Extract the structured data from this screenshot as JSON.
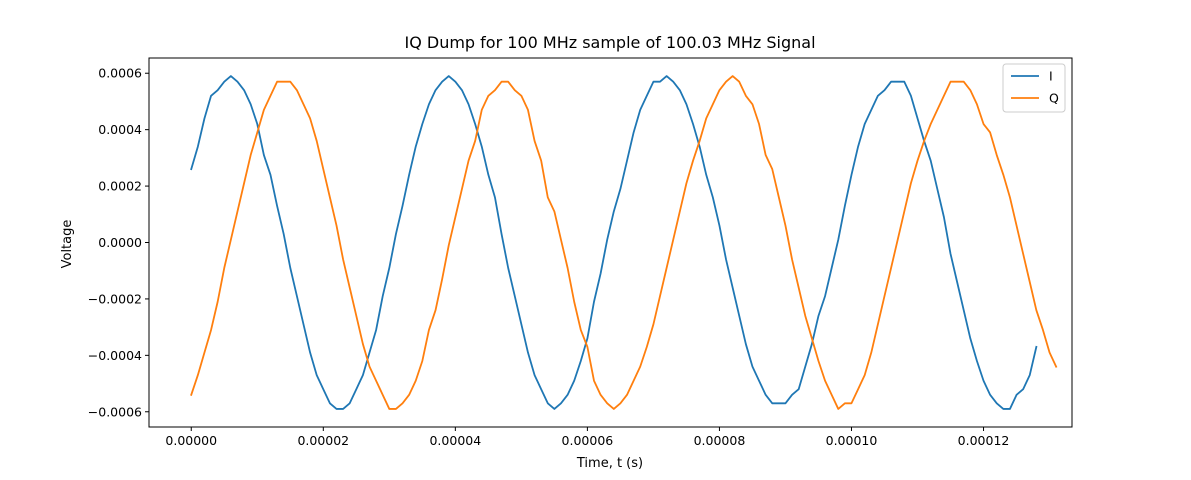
{
  "chart_data": {
    "type": "line",
    "title": "IQ Dump for 100 MHz sample of 100.03 MHz Signal",
    "xlabel": "Time, t (s)",
    "ylabel": "Voltage",
    "xlim": [
      -6.4e-06,
      0.0001334
    ],
    "ylim": [
      -0.000654,
      0.000654
    ],
    "x_ticks": [
      0,
      2e-05,
      4e-05,
      6e-05,
      8e-05,
      0.0001,
      0.00012
    ],
    "x_tick_labels": [
      "0.00000",
      "0.00002",
      "0.00004",
      "0.00006",
      "0.00008",
      "0.00010",
      "0.00012"
    ],
    "y_ticks": [
      -0.0006,
      -0.0004,
      -0.0002,
      0,
      0.0002,
      0.0004,
      0.0006
    ],
    "y_tick_labels": [
      "−0.0006",
      "−0.0004",
      "−0.0002",
      "0.0000",
      "0.0002",
      "0.0004",
      "0.0006"
    ],
    "grid": false,
    "legend_position": "top-right",
    "x_step": 1e-06,
    "series": [
      {
        "name": "I",
        "color": "#1f77b4",
        "values": [
          0.00026,
          0.00034,
          0.00044,
          0.00052,
          0.00054,
          0.00057,
          0.00059,
          0.00057,
          0.00054,
          0.00049,
          0.00042,
          0.00031,
          0.00024,
          0.00013,
          3e-05,
          -9e-05,
          -0.00019,
          -0.00029,
          -0.00039,
          -0.00047,
          -0.00052,
          -0.00057,
          -0.00059,
          -0.00059,
          -0.00057,
          -0.00052,
          -0.00047,
          -0.00039,
          -0.00031,
          -0.00019,
          -9e-05,
          3e-05,
          0.00013,
          0.00024,
          0.00034,
          0.00042,
          0.00049,
          0.00054,
          0.00057,
          0.00059,
          0.00057,
          0.00054,
          0.00049,
          0.00042,
          0.00034,
          0.00024,
          0.00016,
          3e-05,
          -9e-05,
          -0.00019,
          -0.00029,
          -0.00039,
          -0.00047,
          -0.00052,
          -0.00057,
          -0.00059,
          -0.00057,
          -0.00054,
          -0.00049,
          -0.00042,
          -0.00034,
          -0.00021,
          -0.00011,
          1e-05,
          0.00011,
          0.00019,
          0.00029,
          0.00039,
          0.00047,
          0.00052,
          0.00057,
          0.00057,
          0.00059,
          0.00057,
          0.00054,
          0.00049,
          0.00042,
          0.00034,
          0.00024,
          0.00016,
          6e-05,
          -6e-05,
          -0.00016,
          -0.00026,
          -0.00036,
          -0.00044,
          -0.00049,
          -0.00054,
          -0.00057,
          -0.00057,
          -0.00057,
          -0.00054,
          -0.00052,
          -0.00044,
          -0.00036,
          -0.00026,
          -0.00019,
          -9e-05,
          1e-05,
          0.00013,
          0.00024,
          0.00034,
          0.00042,
          0.00047,
          0.00052,
          0.00054,
          0.00057,
          0.00057,
          0.00057,
          0.00052,
          0.00044,
          0.00036,
          0.00029,
          0.00019,
          9e-05,
          -4e-05,
          -0.00014,
          -0.00024,
          -0.00034,
          -0.00042,
          -0.00049,
          -0.00054,
          -0.00057,
          -0.00059,
          -0.00059,
          -0.00054,
          -0.00052,
          -0.00047,
          -0.00037
        ]
      },
      {
        "name": "Q",
        "color": "#ff7f0e",
        "values": [
          -0.00054,
          -0.00047,
          -0.00039,
          -0.00031,
          -0.00021,
          -9e-05,
          1e-05,
          0.00011,
          0.00021,
          0.00031,
          0.00039,
          0.00047,
          0.00052,
          0.00057,
          0.00057,
          0.00057,
          0.00054,
          0.00049,
          0.00044,
          0.00036,
          0.00026,
          0.00016,
          6e-05,
          -6e-05,
          -0.00016,
          -0.00026,
          -0.00036,
          -0.00044,
          -0.00049,
          -0.00054,
          -0.00059,
          -0.00059,
          -0.00057,
          -0.00054,
          -0.00049,
          -0.00042,
          -0.00031,
          -0.00024,
          -0.00013,
          -1e-05,
          9e-05,
          0.00019,
          0.00029,
          0.00036,
          0.00047,
          0.00052,
          0.00054,
          0.00057,
          0.00057,
          0.00054,
          0.00052,
          0.00047,
          0.00036,
          0.00029,
          0.00016,
          0.00011,
          1e-05,
          -9e-05,
          -0.00021,
          -0.00031,
          -0.00037,
          -0.00049,
          -0.00054,
          -0.00057,
          -0.00059,
          -0.00057,
          -0.00054,
          -0.00049,
          -0.00044,
          -0.00037,
          -0.00029,
          -0.00019,
          -9e-05,
          1e-05,
          0.00011,
          0.00021,
          0.00029,
          0.00036,
          0.00044,
          0.00049,
          0.00054,
          0.00057,
          0.00059,
          0.00057,
          0.00052,
          0.00049,
          0.00042,
          0.00031,
          0.00026,
          0.00016,
          6e-05,
          -6e-05,
          -0.00016,
          -0.00026,
          -0.00034,
          -0.00042,
          -0.00049,
          -0.00054,
          -0.00059,
          -0.00057,
          -0.00057,
          -0.00052,
          -0.00047,
          -0.00039,
          -0.00029,
          -0.00019,
          -9e-05,
          1e-05,
          0.00011,
          0.00021,
          0.00029,
          0.00036,
          0.00042,
          0.00047,
          0.00052,
          0.00057,
          0.00057,
          0.00057,
          0.00054,
          0.00049,
          0.00042,
          0.00039,
          0.00031,
          0.00024,
          0.00016,
          6e-05,
          -4e-05,
          -0.00014,
          -0.00024,
          -0.00031,
          -0.00039,
          -0.00044
        ]
      }
    ]
  }
}
